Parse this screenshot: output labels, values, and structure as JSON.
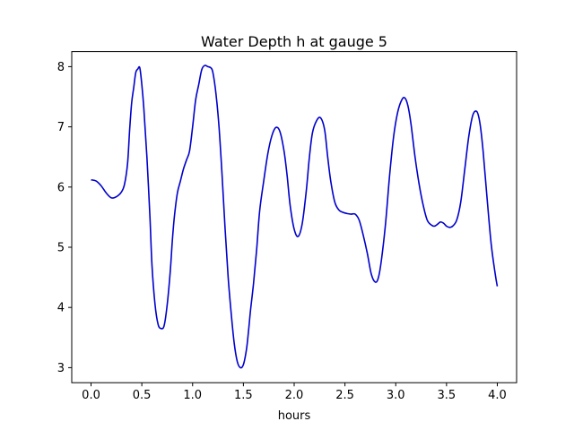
{
  "chart_data": {
    "type": "line",
    "title": "Water Depth h at gauge 5",
    "xlabel": "hours",
    "ylabel": "",
    "xlim": [
      -0.19,
      4.19
    ],
    "ylim": [
      2.75,
      8.25
    ],
    "xticks": [
      0.0,
      0.5,
      1.0,
      1.5,
      2.0,
      2.5,
      3.0,
      3.5,
      4.0
    ],
    "xtick_labels": [
      "0.0",
      "0.5",
      "1.0",
      "1.5",
      "2.0",
      "2.5",
      "3.0",
      "3.5",
      "4.0"
    ],
    "yticks": [
      3,
      4,
      5,
      6,
      7,
      8
    ],
    "ytick_labels": [
      "3",
      "4",
      "5",
      "6",
      "7",
      "8"
    ],
    "grid": false,
    "series": [
      {
        "color": "#0000cc",
        "x": [
          0.0,
          0.05,
          0.1,
          0.15,
          0.2,
          0.25,
          0.3,
          0.33,
          0.36,
          0.38,
          0.4,
          0.42,
          0.44,
          0.46,
          0.48,
          0.5,
          0.52,
          0.55,
          0.58,
          0.6,
          0.63,
          0.66,
          0.69,
          0.72,
          0.75,
          0.78,
          0.8,
          0.82,
          0.85,
          0.88,
          0.91,
          0.94,
          0.97,
          1.0,
          1.03,
          1.06,
          1.09,
          1.12,
          1.15,
          1.18,
          1.2,
          1.23,
          1.26,
          1.29,
          1.32,
          1.35,
          1.38,
          1.41,
          1.44,
          1.47,
          1.5,
          1.53,
          1.55,
          1.57,
          1.6,
          1.63,
          1.66,
          1.7,
          1.74,
          1.78,
          1.82,
          1.86,
          1.9,
          1.93,
          1.96,
          2.0,
          2.04,
          2.08,
          2.12,
          2.15,
          2.18,
          2.22,
          2.26,
          2.3,
          2.33,
          2.36,
          2.4,
          2.44,
          2.48,
          2.52,
          2.56,
          2.6,
          2.64,
          2.68,
          2.72,
          2.76,
          2.8,
          2.83,
          2.86,
          2.9,
          2.94,
          2.98,
          3.02,
          3.06,
          3.09,
          3.12,
          3.15,
          3.19,
          3.23,
          3.27,
          3.31,
          3.35,
          3.38,
          3.41,
          3.44,
          3.47,
          3.5,
          3.53,
          3.56,
          3.6,
          3.64,
          3.68,
          3.72,
          3.76,
          3.8,
          3.83,
          3.86,
          3.9,
          3.94,
          3.98,
          4.0
        ],
        "y": [
          6.12,
          6.1,
          6.02,
          5.9,
          5.82,
          5.84,
          5.92,
          6.05,
          6.4,
          6.95,
          7.4,
          7.65,
          7.9,
          7.96,
          7.98,
          7.7,
          7.3,
          6.5,
          5.5,
          4.7,
          4.05,
          3.72,
          3.65,
          3.7,
          4.05,
          4.6,
          5.1,
          5.5,
          5.9,
          6.1,
          6.3,
          6.45,
          6.6,
          7.0,
          7.45,
          7.7,
          7.95,
          8.02,
          8.0,
          7.98,
          7.9,
          7.55,
          7.0,
          6.2,
          5.3,
          4.5,
          3.9,
          3.4,
          3.1,
          3.0,
          3.05,
          3.3,
          3.6,
          3.95,
          4.4,
          4.95,
          5.6,
          6.1,
          6.55,
          6.85,
          6.99,
          6.92,
          6.6,
          6.2,
          5.7,
          5.3,
          5.18,
          5.4,
          5.95,
          6.5,
          6.9,
          7.1,
          7.15,
          6.95,
          6.5,
          6.1,
          5.75,
          5.62,
          5.58,
          5.56,
          5.55,
          5.55,
          5.45,
          5.2,
          4.9,
          4.55,
          4.42,
          4.5,
          4.8,
          5.4,
          6.2,
          6.85,
          7.25,
          7.45,
          7.48,
          7.35,
          7.05,
          6.5,
          6.05,
          5.7,
          5.45,
          5.37,
          5.35,
          5.38,
          5.42,
          5.4,
          5.35,
          5.33,
          5.35,
          5.45,
          5.75,
          6.3,
          6.85,
          7.2,
          7.25,
          7.05,
          6.6,
          5.8,
          5.05,
          4.55,
          4.35
        ]
      }
    ]
  }
}
